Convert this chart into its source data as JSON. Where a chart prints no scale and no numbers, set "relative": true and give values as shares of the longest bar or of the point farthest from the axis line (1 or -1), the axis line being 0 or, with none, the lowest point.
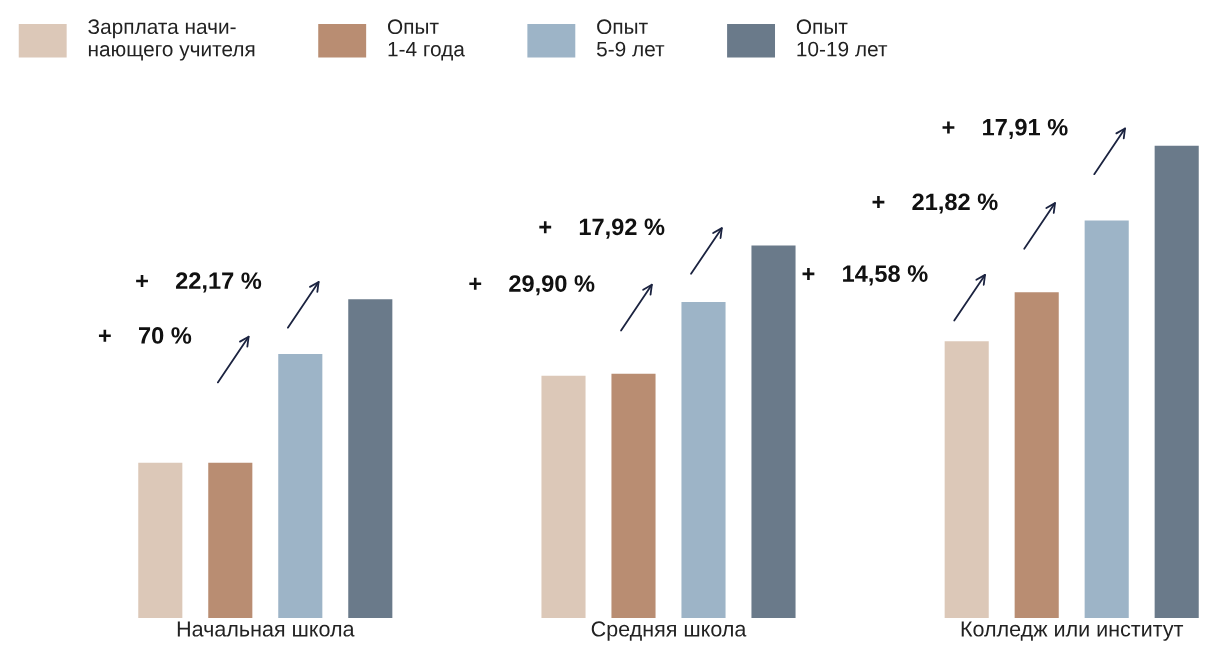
{
  "chart_data": {
    "type": "bar",
    "relative": true,
    "categories": [
      "Начальная школа",
      "Средняя школа",
      "Колледж или институт"
    ],
    "series": [
      {
        "name": "Зарплата начи-\nнающего учителя",
        "color": "#dcc8b8",
        "values": [
          0.329,
          0.513,
          0.586
        ]
      },
      {
        "name": "Опыт\n1-4 года",
        "color": "#b98d72",
        "values": [
          0.329,
          0.517,
          0.69
        ]
      },
      {
        "name": "Опыт\n5-9 лет",
        "color": "#9db4c7",
        "values": [
          0.559,
          0.669,
          0.842
        ]
      },
      {
        "name": "Опыт\n10-19 лет",
        "color": "#6a7a8a",
        "values": [
          0.675,
          0.789,
          1
        ]
      }
    ],
    "annotations": [
      "+    70 %",
      "+    22,17 %",
      "+    29,90 %",
      "+    17,92 %",
      "+    14,58 %",
      "+    21,82 %",
      "+    17,91 %"
    ],
    "legend": "top left",
    "grid": false
  }
}
